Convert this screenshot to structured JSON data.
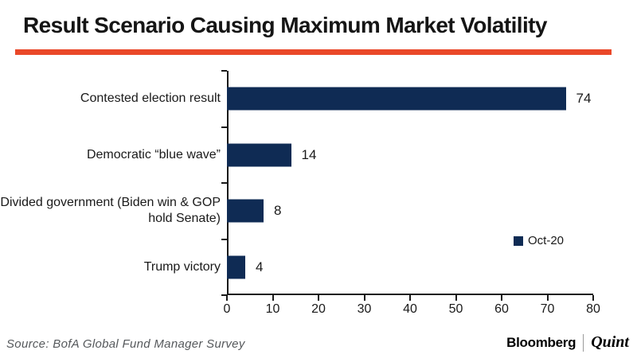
{
  "title": "Result Scenario Causing Maximum Market Volatility",
  "accent_color": "#EA4829",
  "chart_data": {
    "type": "bar",
    "orientation": "horizontal",
    "title": "Result Scenario Causing Maximum Market Volatility",
    "categories": [
      "Contested election result",
      "Democratic “blue wave”",
      "Divided government (Biden win & GOP hold Senate)",
      "Trump victory"
    ],
    "values": [
      74,
      14,
      8,
      4
    ],
    "series_name": "Oct-20",
    "xlim": [
      0,
      80
    ],
    "xticks": [
      0,
      10,
      20,
      30,
      40,
      50,
      60,
      70,
      80
    ],
    "bar_color": "#0F2B54",
    "grid": false,
    "legend_position": "right-middle",
    "value_labels": true
  },
  "footer": {
    "source": "Source: BofA Global Fund Manager Survey",
    "brand_left": "Bloomberg",
    "brand_right": "Quint"
  }
}
